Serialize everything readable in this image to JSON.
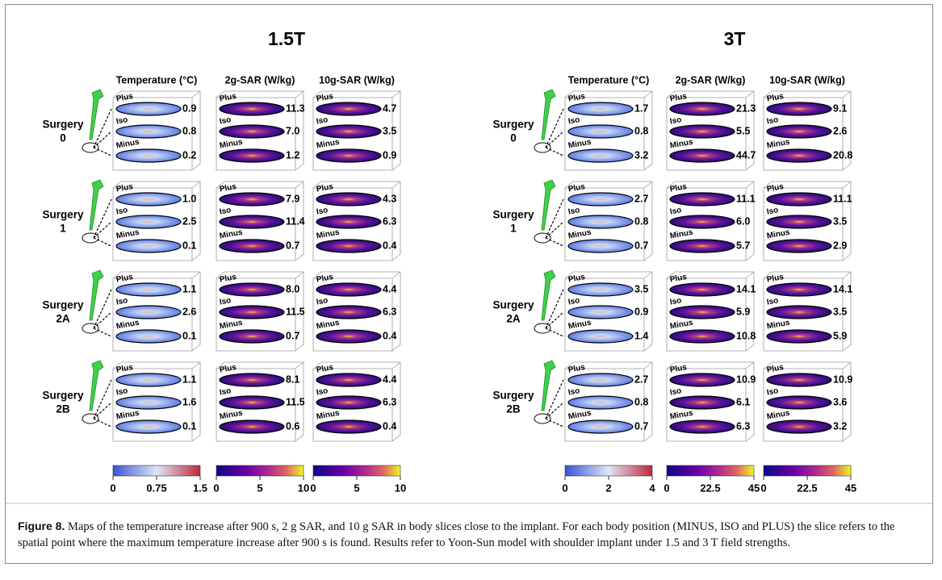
{
  "panels": [
    {
      "title": "1.5T",
      "columns": [
        {
          "header": "Temperature (°C)",
          "colorbar_ticks": [
            "0",
            "0.75",
            "1.5"
          ]
        },
        {
          "header": "2g-SAR (W/kg)",
          "colorbar_ticks": [
            "0",
            "5",
            "10"
          ]
        },
        {
          "header": "10g-SAR (W/kg)",
          "colorbar_ticks": [
            "0",
            "5",
            "10"
          ]
        }
      ],
      "rows": [
        {
          "label": [
            "Surgery",
            "0"
          ],
          "cells": [
            [
              "0.9",
              "0.8",
              "0.2"
            ],
            [
              "11.3",
              "7.0",
              "1.2"
            ],
            [
              "4.7",
              "3.5",
              "0.9"
            ]
          ]
        },
        {
          "label": [
            "Surgery",
            "1"
          ],
          "cells": [
            [
              "1.0",
              "2.5",
              "0.1"
            ],
            [
              "7.9",
              "11.4",
              "0.7"
            ],
            [
              "4.3",
              "6.3",
              "0.4"
            ]
          ]
        },
        {
          "label": [
            "Surgery",
            "2A"
          ],
          "cells": [
            [
              "1.1",
              "2.6",
              "0.1"
            ],
            [
              "8.0",
              "11.5",
              "0.7"
            ],
            [
              "4.4",
              "6.3",
              "0.4"
            ]
          ]
        },
        {
          "label": [
            "Surgery",
            "2B"
          ],
          "cells": [
            [
              "1.1",
              "1.6",
              "0.1"
            ],
            [
              "8.1",
              "11.5",
              "0.6"
            ],
            [
              "4.4",
              "6.3",
              "0.4"
            ]
          ]
        }
      ]
    },
    {
      "title": "3T",
      "columns": [
        {
          "header": "Temperature (°C)",
          "colorbar_ticks": [
            "0",
            "2",
            "4"
          ]
        },
        {
          "header": "2g-SAR (W/kg)",
          "colorbar_ticks": [
            "0",
            "22.5",
            "45"
          ]
        },
        {
          "header": "10g-SAR (W/kg)",
          "colorbar_ticks": [
            "0",
            "22.5",
            "45"
          ]
        }
      ],
      "rows": [
        {
          "label": [
            "Surgery",
            "0"
          ],
          "cells": [
            [
              "1.7",
              "0.8",
              "3.2"
            ],
            [
              "21.3",
              "5.5",
              "44.7"
            ],
            [
              "9.1",
              "2.6",
              "20.8"
            ]
          ]
        },
        {
          "label": [
            "Surgery",
            "1"
          ],
          "cells": [
            [
              "2.7",
              "0.8",
              "0.7"
            ],
            [
              "11.1",
              "6.0",
              "5.7"
            ],
            [
              "11.1",
              "3.5",
              "2.9"
            ]
          ]
        },
        {
          "label": [
            "Surgery",
            "2A"
          ],
          "cells": [
            [
              "3.5",
              "0.9",
              "1.4"
            ],
            [
              "14.1",
              "5.9",
              "10.8"
            ],
            [
              "14.1",
              "3.5",
              "5.9"
            ]
          ]
        },
        {
          "label": [
            "Surgery",
            "2B"
          ],
          "cells": [
            [
              "2.7",
              "0.8",
              "0.7"
            ],
            [
              "10.9",
              "6.1",
              "6.3"
            ],
            [
              "10.9",
              "3.6",
              "3.2"
            ]
          ]
        }
      ]
    }
  ],
  "slice_labels": [
    "Plus",
    "Iso",
    "Minus"
  ],
  "caption": {
    "label": "Figure 8.",
    "text": "Maps of the temperature increase after 900 s, 2 g SAR, and 10 g SAR in body slices close to the implant. For each body position (MINUS, ISO and PLUS) the slice refers to the spatial point where the maximum temperature increase after 900 s is found. Results refer to Yoon-Sun model with shoulder implant under 1.5 and 3 T field strengths."
  }
}
